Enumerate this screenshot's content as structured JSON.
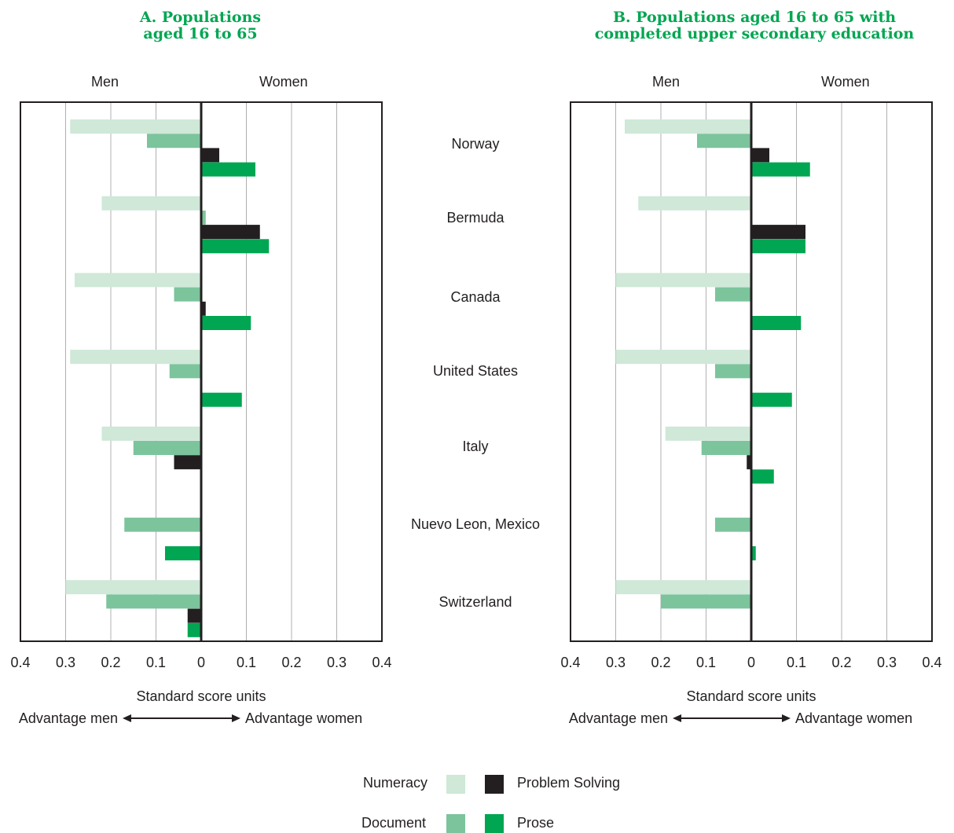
{
  "colors": {
    "numeracy": "#cfe8d8",
    "document": "#7cc49c",
    "problem_solving": "#231f20",
    "prose": "#00a651",
    "title": "#00a651",
    "gridline": "#b0b0b0"
  },
  "panel_a": {
    "title_line1": "A.   Populations",
    "title_line2": "aged 16 to 65",
    "left_header": "Men",
    "right_header": "Women"
  },
  "panel_b": {
    "title_line1": "B.   Populations aged 16 to 65 with",
    "title_line2": "completed upper secondary education",
    "left_header": "Men",
    "right_header": "Women"
  },
  "axis": {
    "tick_labels": [
      "0.4",
      "0.3",
      "0.2",
      "0.1",
      "0",
      "0.1",
      "0.2",
      "0.3",
      "0.4"
    ],
    "title": "Standard score units",
    "advantage_men": "Advantage men",
    "advantage_women": "Advantage women"
  },
  "legend": {
    "numeracy": "Numeracy",
    "document": "Document",
    "problem_solving": "Problem Solving",
    "prose": "Prose"
  },
  "chart_data": [
    {
      "type": "bar",
      "orientation": "horizontal",
      "title": "A. Populations aged 16 to 65",
      "xlabel": "Standard score units",
      "xlim": [
        -0.4,
        0.4
      ],
      "categories": [
        "Norway",
        "Bermuda",
        "Canada",
        "United States",
        "Italy",
        "Nuevo Leon, Mexico",
        "Switzerland"
      ],
      "series": [
        {
          "name": "Numeracy",
          "values": [
            -0.29,
            -0.22,
            -0.28,
            -0.29,
            -0.22,
            null,
            -0.3
          ]
        },
        {
          "name": "Document",
          "values": [
            -0.12,
            0.01,
            -0.06,
            -0.07,
            -0.15,
            -0.17,
            -0.21
          ]
        },
        {
          "name": "Problem Solving",
          "values": [
            0.04,
            0.13,
            0.01,
            null,
            -0.06,
            null,
            -0.03
          ]
        },
        {
          "name": "Prose",
          "values": [
            0.12,
            0.15,
            0.11,
            0.09,
            null,
            -0.08,
            -0.03
          ]
        }
      ]
    },
    {
      "type": "bar",
      "orientation": "horizontal",
      "title": "B. Populations aged 16 to 65 with completed upper secondary education",
      "xlabel": "Standard score units",
      "xlim": [
        -0.4,
        0.4
      ],
      "categories": [
        "Norway",
        "Bermuda",
        "Canada",
        "United States",
        "Italy",
        "Nuevo Leon, Mexico",
        "Switzerland"
      ],
      "series": [
        {
          "name": "Numeracy",
          "values": [
            -0.28,
            -0.25,
            -0.3,
            -0.3,
            -0.19,
            null,
            -0.3
          ]
        },
        {
          "name": "Document",
          "values": [
            -0.12,
            null,
            -0.08,
            -0.08,
            -0.11,
            -0.08,
            -0.2
          ]
        },
        {
          "name": "Problem Solving",
          "values": [
            0.04,
            0.12,
            null,
            null,
            -0.01,
            null,
            null
          ]
        },
        {
          "name": "Prose",
          "values": [
            0.13,
            0.12,
            0.11,
            0.09,
            0.05,
            0.01,
            null
          ]
        }
      ]
    }
  ]
}
